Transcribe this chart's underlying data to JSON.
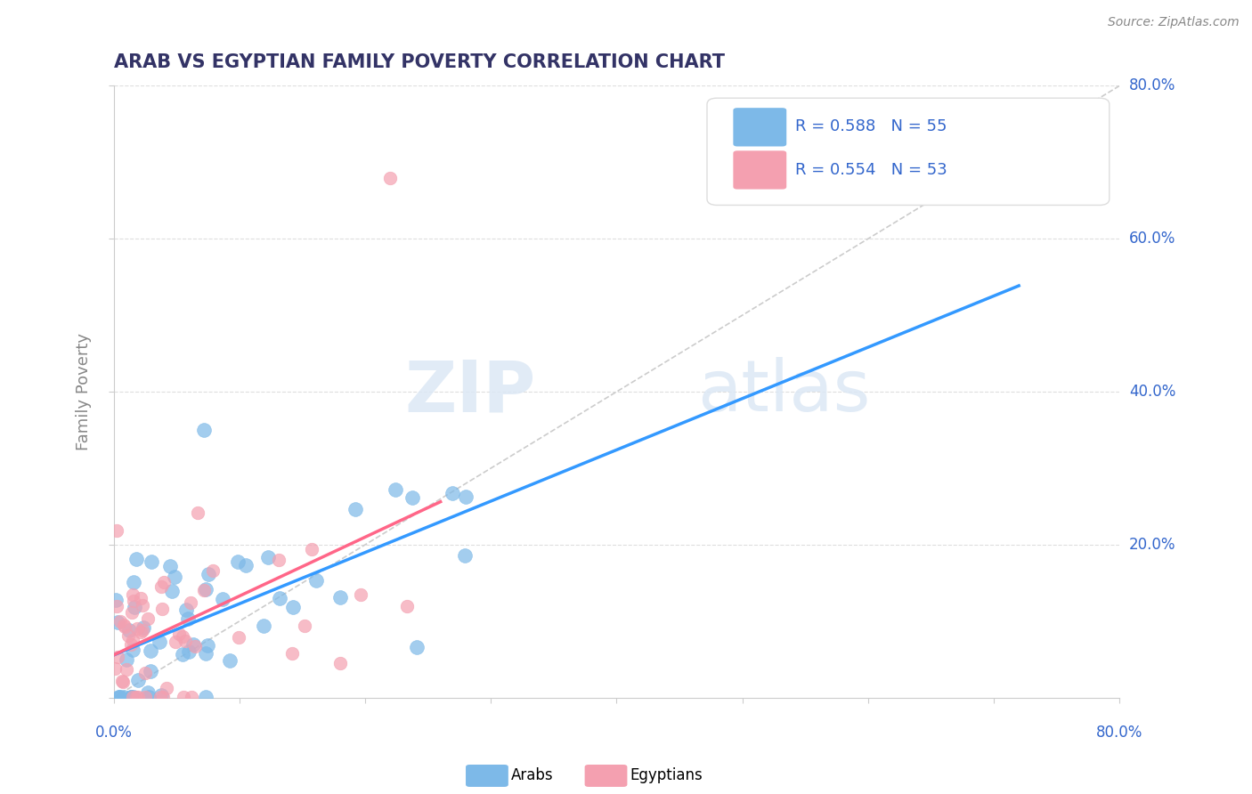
{
  "title": "ARAB VS EGYPTIAN FAMILY POVERTY CORRELATION CHART",
  "source": "Source: ZipAtlas.com",
  "ylabel": "Family Poverty",
  "xlim": [
    0.0,
    0.8
  ],
  "ylim": [
    0.0,
    0.8
  ],
  "arab_R": 0.588,
  "arab_N": 55,
  "egypt_R": 0.554,
  "egypt_N": 53,
  "arab_color": "#7DB9E8",
  "egypt_color": "#F4A0B0",
  "arab_line_color": "#3399FF",
  "egypt_line_color": "#FF6688",
  "diagonal_color": "#CCCCCC",
  "legend_text_color": "#3366CC",
  "title_color": "#333366",
  "axis_label_color": "#3366CC",
  "background_color": "#FFFFFF",
  "watermark_zip": "ZIP",
  "watermark_atlas": "atlas",
  "grid_color": "#DDDDDD",
  "ytick_values": [
    0.0,
    0.2,
    0.4,
    0.6,
    0.8
  ],
  "ytick_labels": [
    "0.0%",
    "20.0%",
    "40.0%",
    "60.0%",
    "80.0%"
  ]
}
